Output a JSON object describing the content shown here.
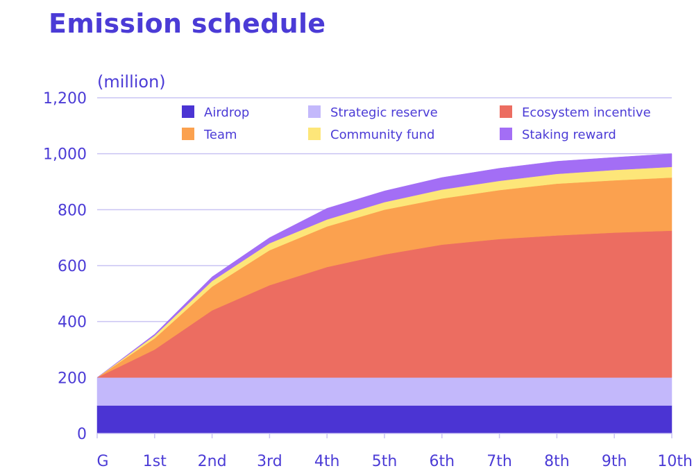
{
  "title": "Emission schedule",
  "chart_data": {
    "type": "area",
    "stacked": true,
    "title": "Emission schedule",
    "unit_label": "(million)",
    "categories": [
      "G",
      "1st",
      "2nd",
      "3rd",
      "4th",
      "5th",
      "6th",
      "7th",
      "8th",
      "9th",
      "10th"
    ],
    "ylim": [
      0,
      1200
    ],
    "yticks": [
      0,
      200,
      400,
      600,
      800,
      1000,
      1200
    ],
    "ytick_labels": [
      "0",
      "200",
      "400",
      "600",
      "800",
      "1,000",
      "1,200"
    ],
    "grid": true,
    "legend_position": "top",
    "series": [
      {
        "name": "Airdrop",
        "color": "#4b34d3",
        "values": [
          100,
          100,
          100,
          100,
          100,
          100,
          100,
          100,
          100,
          100,
          100
        ]
      },
      {
        "name": "Strategic reserve",
        "color": "#c3b8fb",
        "values": [
          100,
          100,
          100,
          100,
          100,
          100,
          100,
          100,
          100,
          100,
          100
        ]
      },
      {
        "name": "Ecosystem incentive",
        "color": "#ec6d61",
        "values": [
          0,
          100,
          240,
          330,
          395,
          440,
          475,
          495,
          508,
          518,
          525
        ]
      },
      {
        "name": "Team",
        "color": "#fba14f",
        "values": [
          0,
          40,
          85,
          125,
          145,
          160,
          165,
          175,
          185,
          187,
          190
        ]
      },
      {
        "name": "Community fund",
        "color": "#fde679",
        "values": [
          0,
          10,
          20,
          25,
          25,
          27,
          32,
          33,
          35,
          37,
          38
        ]
      },
      {
        "name": "Staking reward",
        "color": "#a36ef5",
        "values": [
          0,
          5,
          15,
          20,
          40,
          40,
          43,
          45,
          45,
          45,
          47
        ]
      }
    ],
    "legend_order": [
      "Airdrop",
      "Strategic reserve",
      "Ecosystem incentive",
      "Team",
      "Community fund",
      "Staking reward"
    ]
  }
}
